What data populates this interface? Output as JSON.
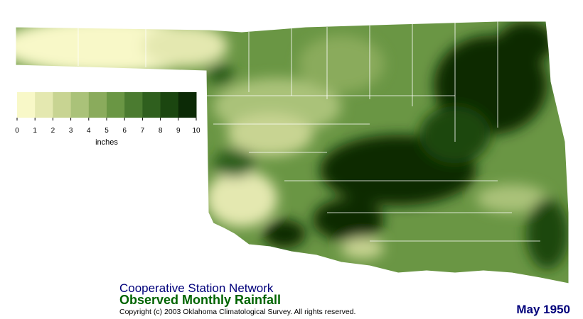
{
  "header": {
    "network": "Cooperative Station Network",
    "title": "Observed Monthly Rainfall",
    "copyright": "Copyright (c) 2003 Oklahoma Climatological Survey. All rights reserved.",
    "date": "May 1950"
  },
  "legend": {
    "ticks": [
      0,
      1,
      2,
      3,
      4,
      5,
      6,
      7,
      8,
      9,
      10
    ],
    "unit": "inches",
    "colors": [
      "#f8f8c8",
      "#e4e8b0",
      "#c8d492",
      "#aac279",
      "#8aab5c",
      "#6a9644",
      "#4b7b30",
      "#2f5f1e",
      "#1b4610",
      "#0c2a06"
    ]
  }
}
